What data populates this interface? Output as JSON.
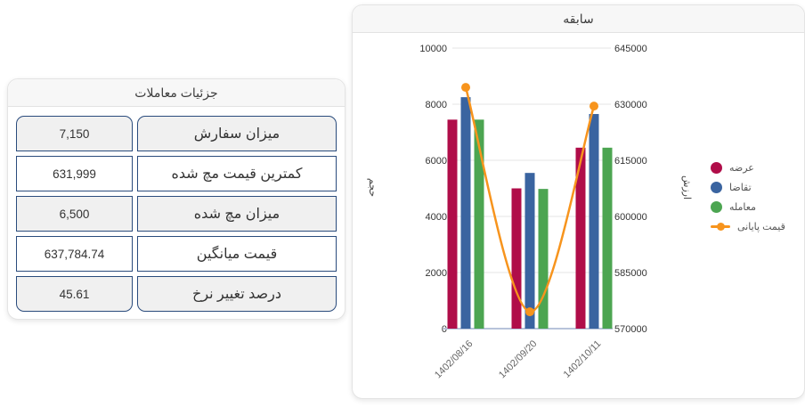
{
  "details_card": {
    "title": "جزئیات معاملات",
    "rows": [
      {
        "label": "میزان سفارش",
        "value": "7,150"
      },
      {
        "label": "کمترین قیمت مچ شده",
        "value": "631,999"
      },
      {
        "label": "میزان مچ شده",
        "value": "6,500"
      },
      {
        "label": "قیمت میانگین",
        "value": "637,784.74"
      },
      {
        "label": "درصد تغییر نرخ",
        "value": "45.61"
      }
    ]
  },
  "history_card": {
    "title": "سابقه"
  },
  "chart_data": {
    "type": "bar",
    "title": "سابقه",
    "categories": [
      "1402/08/16",
      "1402/09/20",
      "1402/10/11"
    ],
    "series": [
      {
        "name": "عرضه",
        "type": "bar",
        "color": "#B00D49",
        "axis": "left",
        "values": [
          7450,
          5000,
          6450
        ]
      },
      {
        "name": "تقاضا",
        "type": "bar",
        "color": "#3A64A0",
        "axis": "left",
        "values": [
          8250,
          5550,
          7650
        ]
      },
      {
        "name": "معامله",
        "type": "bar",
        "color": "#4CA551",
        "axis": "left",
        "values": [
          7450,
          4980,
          6450
        ]
      },
      {
        "name": "قیمت پایانی",
        "type": "line",
        "color": "#F7941D",
        "axis": "right",
        "values": [
          634500,
          574500,
          629500
        ]
      }
    ],
    "left_axis": {
      "label": "حجم",
      "min": 0,
      "max": 10000,
      "ticks": [
        0,
        2000,
        4000,
        6000,
        8000,
        10000
      ]
    },
    "right_axis": {
      "label": "ارزش",
      "min": 570000,
      "max": 645000,
      "ticks": [
        570000,
        585000,
        600000,
        615000,
        630000,
        645000
      ]
    },
    "legend_position": "right",
    "grid": true,
    "grid_color": "#e6e6e6",
    "baseline_color": "#b7c3da",
    "tick_color": "#333333",
    "xlabel_rotation": -45
  }
}
